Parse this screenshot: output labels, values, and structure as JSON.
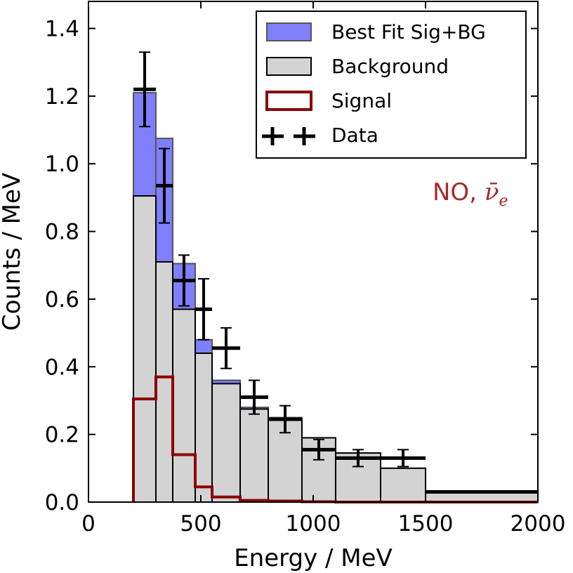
{
  "chart_data": {
    "type": "histogram",
    "xlabel": "Energy / MeV",
    "ylabel": "Counts / MeV",
    "xlim": [
      0,
      2000
    ],
    "ylim": [
      0,
      1.48
    ],
    "xticks": [
      0,
      500,
      1000,
      1500,
      2000
    ],
    "yticks": [
      0.0,
      0.2,
      0.4,
      0.6,
      0.8,
      1.0,
      1.2,
      1.4
    ],
    "ytick_labels": [
      "0.0",
      "0.2",
      "0.4",
      "0.6",
      "0.8",
      "1.0",
      "1.2",
      "1.4"
    ],
    "bin_edges": [
      200,
      300,
      375,
      475,
      550,
      675,
      800,
      950,
      1100,
      1300,
      1500,
      2000
    ],
    "series": [
      {
        "name": "Best Fit Sig+BG",
        "style": "filled",
        "color": "#7f7ffb",
        "values": [
          1.21,
          1.075,
          0.705,
          0.48,
          0.36,
          0.28,
          0.25,
          0.19,
          0.145,
          0.1,
          0.03
        ]
      },
      {
        "name": "Background",
        "style": "filled",
        "color": "#d3d3d3",
        "values": [
          0.905,
          0.71,
          0.57,
          0.44,
          0.35,
          0.275,
          0.245,
          0.19,
          0.145,
          0.1,
          0.03
        ]
      },
      {
        "name": "Signal",
        "style": "step",
        "color": "#8b0000",
        "values": [
          0.305,
          0.37,
          0.14,
          0.045,
          0.015,
          0.005,
          0.003,
          0.001,
          0.0,
          0.0,
          0.0
        ]
      }
    ],
    "data_points": {
      "name": "Data",
      "points": [
        {
          "x": 250,
          "y": 1.22,
          "xerr": 50,
          "yerr": 0.11
        },
        {
          "x": 337.5,
          "y": 0.935,
          "xerr": 37.5,
          "yerr": 0.11
        },
        {
          "x": 425,
          "y": 0.655,
          "xerr": 50,
          "yerr": 0.075
        },
        {
          "x": 512.5,
          "y": 0.57,
          "xerr": 37.5,
          "yerr": 0.09
        },
        {
          "x": 612.5,
          "y": 0.455,
          "xerr": 62.5,
          "yerr": 0.06
        },
        {
          "x": 737.5,
          "y": 0.31,
          "xerr": 62.5,
          "yerr": 0.05
        },
        {
          "x": 875,
          "y": 0.245,
          "xerr": 75,
          "yerr": 0.04
        },
        {
          "x": 1025,
          "y": 0.155,
          "xerr": 75,
          "yerr": 0.03
        },
        {
          "x": 1200,
          "y": 0.13,
          "xerr": 100,
          "yerr": 0.025
        },
        {
          "x": 1400,
          "y": 0.13,
          "xerr": 100,
          "yerr": 0.025
        },
        {
          "x": 1750,
          "y": 0.03,
          "xerr": 250,
          "yerr": 0.0
        }
      ]
    },
    "legend": {
      "position": "top-right",
      "entries": [
        "Best Fit Sig+BG",
        "Background",
        "Signal",
        "Data"
      ]
    },
    "annotation": {
      "text": "NO, ",
      "math": "ν̄",
      "subscript": "e",
      "color": "#a52a2a",
      "position": "upper-right"
    }
  }
}
